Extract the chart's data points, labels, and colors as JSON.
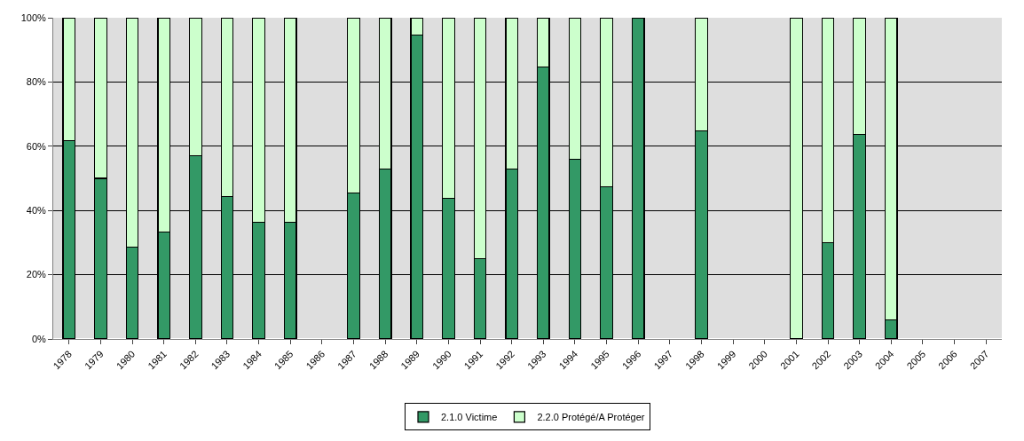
{
  "chart_data": {
    "type": "bar",
    "stacked": true,
    "categories": [
      "1978",
      "1979",
      "1980",
      "1981",
      "1982",
      "1983",
      "1984",
      "1985",
      "1986",
      "1987",
      "1988",
      "1989",
      "1990",
      "1991",
      "1992",
      "1993",
      "1994",
      "1995",
      "1996",
      "1997",
      "1998",
      "1999",
      "2000",
      "2001",
      "2002",
      "2003",
      "2004",
      "2005",
      "2006",
      "2007"
    ],
    "series": [
      {
        "name": "2.1.0 Victime",
        "color": "#339966",
        "values": [
          61.7,
          50,
          28.5,
          33.3,
          57,
          44.4,
          36.4,
          36.4,
          null,
          45.5,
          53,
          94.7,
          43.8,
          25,
          53,
          84.6,
          56,
          47.3,
          100,
          null,
          64.7,
          null,
          null,
          0,
          30,
          63.6,
          6,
          null,
          null,
          null
        ]
      },
      {
        "name": "2.2.0 Protégé/A Protéger",
        "color": "#ccffcc",
        "values": [
          38.3,
          50,
          71.5,
          66.7,
          43,
          55.6,
          63.6,
          63.6,
          null,
          54.5,
          47,
          5.3,
          56.2,
          75,
          47,
          15.4,
          44,
          52.7,
          0,
          null,
          35.3,
          null,
          null,
          100,
          70,
          36.4,
          94,
          null,
          null,
          null
        ]
      }
    ],
    "ylim": [
      0,
      100
    ],
    "yticks": [
      {
        "value": 0,
        "label": "0%"
      },
      {
        "value": 20,
        "label": "20%"
      },
      {
        "value": 40,
        "label": "40%"
      },
      {
        "value": 60,
        "label": "60%"
      },
      {
        "value": 80,
        "label": "80%"
      },
      {
        "value": 100,
        "label": "100%"
      }
    ],
    "grid": "y",
    "legend": "bottom"
  }
}
